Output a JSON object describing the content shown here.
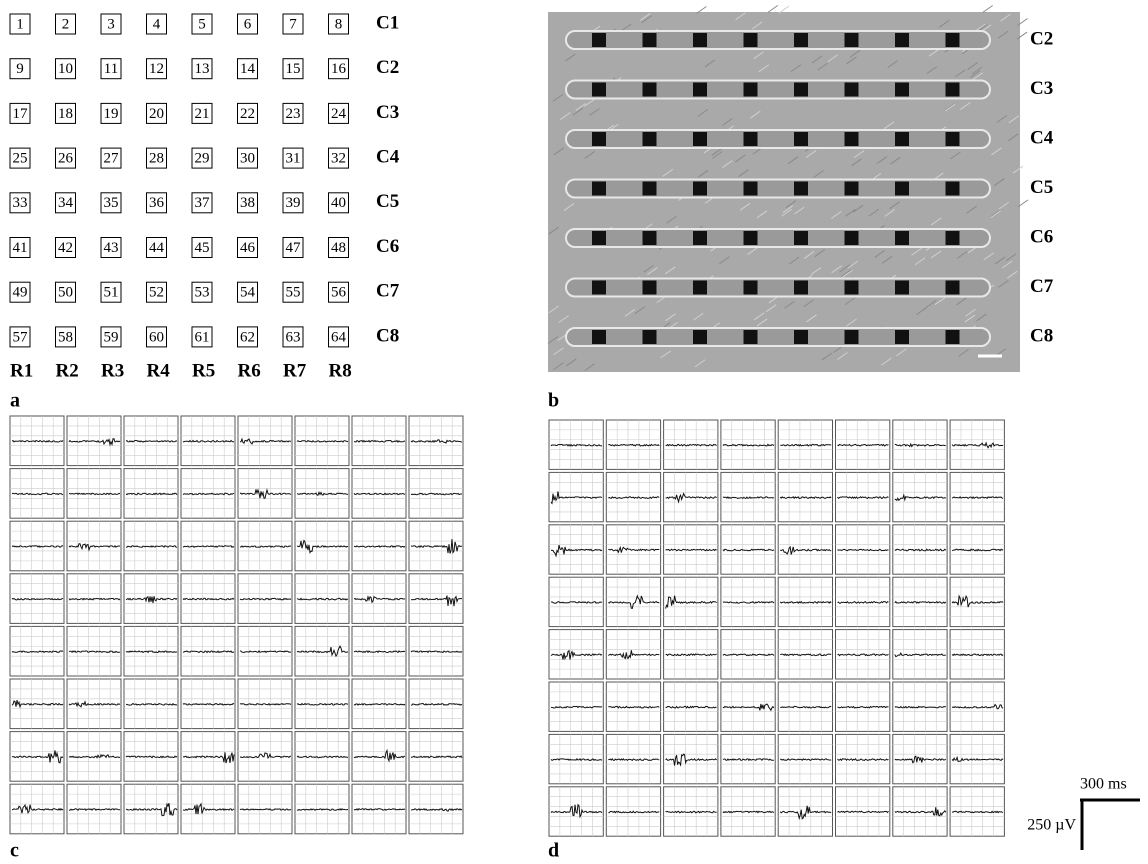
{
  "panel_a": {
    "label": "a",
    "cells": [
      [
        1,
        2,
        3,
        4,
        5,
        6,
        7,
        8
      ],
      [
        9,
        10,
        11,
        12,
        13,
        14,
        15,
        16
      ],
      [
        17,
        18,
        19,
        20,
        21,
        22,
        23,
        24
      ],
      [
        25,
        26,
        27,
        28,
        29,
        30,
        31,
        32
      ],
      [
        33,
        34,
        35,
        36,
        37,
        38,
        39,
        40
      ],
      [
        41,
        42,
        43,
        44,
        45,
        46,
        47,
        48
      ],
      [
        49,
        50,
        51,
        52,
        53,
        54,
        55,
        56
      ],
      [
        57,
        58,
        59,
        60,
        61,
        62,
        63,
        64
      ]
    ],
    "row_labels": [
      "C1",
      "C2",
      "C3",
      "C4",
      "C5",
      "C6",
      "C7",
      "C8"
    ],
    "column_labels": [
      "R1",
      "R2",
      "R3",
      "R4",
      "R5",
      "R6",
      "R7",
      "R8"
    ]
  },
  "panel_b": {
    "label": "b",
    "row_labels": [
      "C2",
      "C3",
      "C4",
      "C5",
      "C6",
      "C7",
      "C8"
    ]
  },
  "panel_c": {
    "label": "c"
  },
  "panel_d": {
    "label": "d",
    "scale_bar": {
      "time": "300 ms",
      "voltage": "250 µV"
    }
  }
}
